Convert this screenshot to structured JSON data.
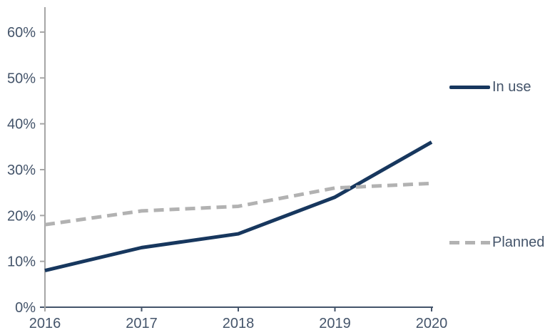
{
  "chart_data": {
    "type": "line",
    "title": "",
    "x": [
      2016,
      2017,
      2018,
      2019,
      2020
    ],
    "xtick_labels": [
      "2016",
      "2017",
      "2018",
      "2019",
      "2020"
    ],
    "series": [
      {
        "name": "In use",
        "values": [
          8,
          13,
          16,
          24,
          36
        ],
        "color": "#17375e",
        "style": "solid"
      },
      {
        "name": "Planned",
        "values": [
          18,
          21,
          22,
          26,
          27
        ],
        "color": "#b2b2b2",
        "style": "dashed"
      }
    ],
    "ylim": [
      0,
      65
    ],
    "yticks": [
      0,
      10,
      20,
      30,
      40,
      50,
      60
    ],
    "ytick_labels": [
      "0%",
      "10%",
      "20%",
      "30%",
      "40%",
      "50%",
      "60%"
    ],
    "grid": false,
    "legend_position": "right",
    "colors": {
      "axis_major": "#44546a",
      "axis_minor": "#a6a6a6",
      "tick_text": "#44546a"
    }
  }
}
